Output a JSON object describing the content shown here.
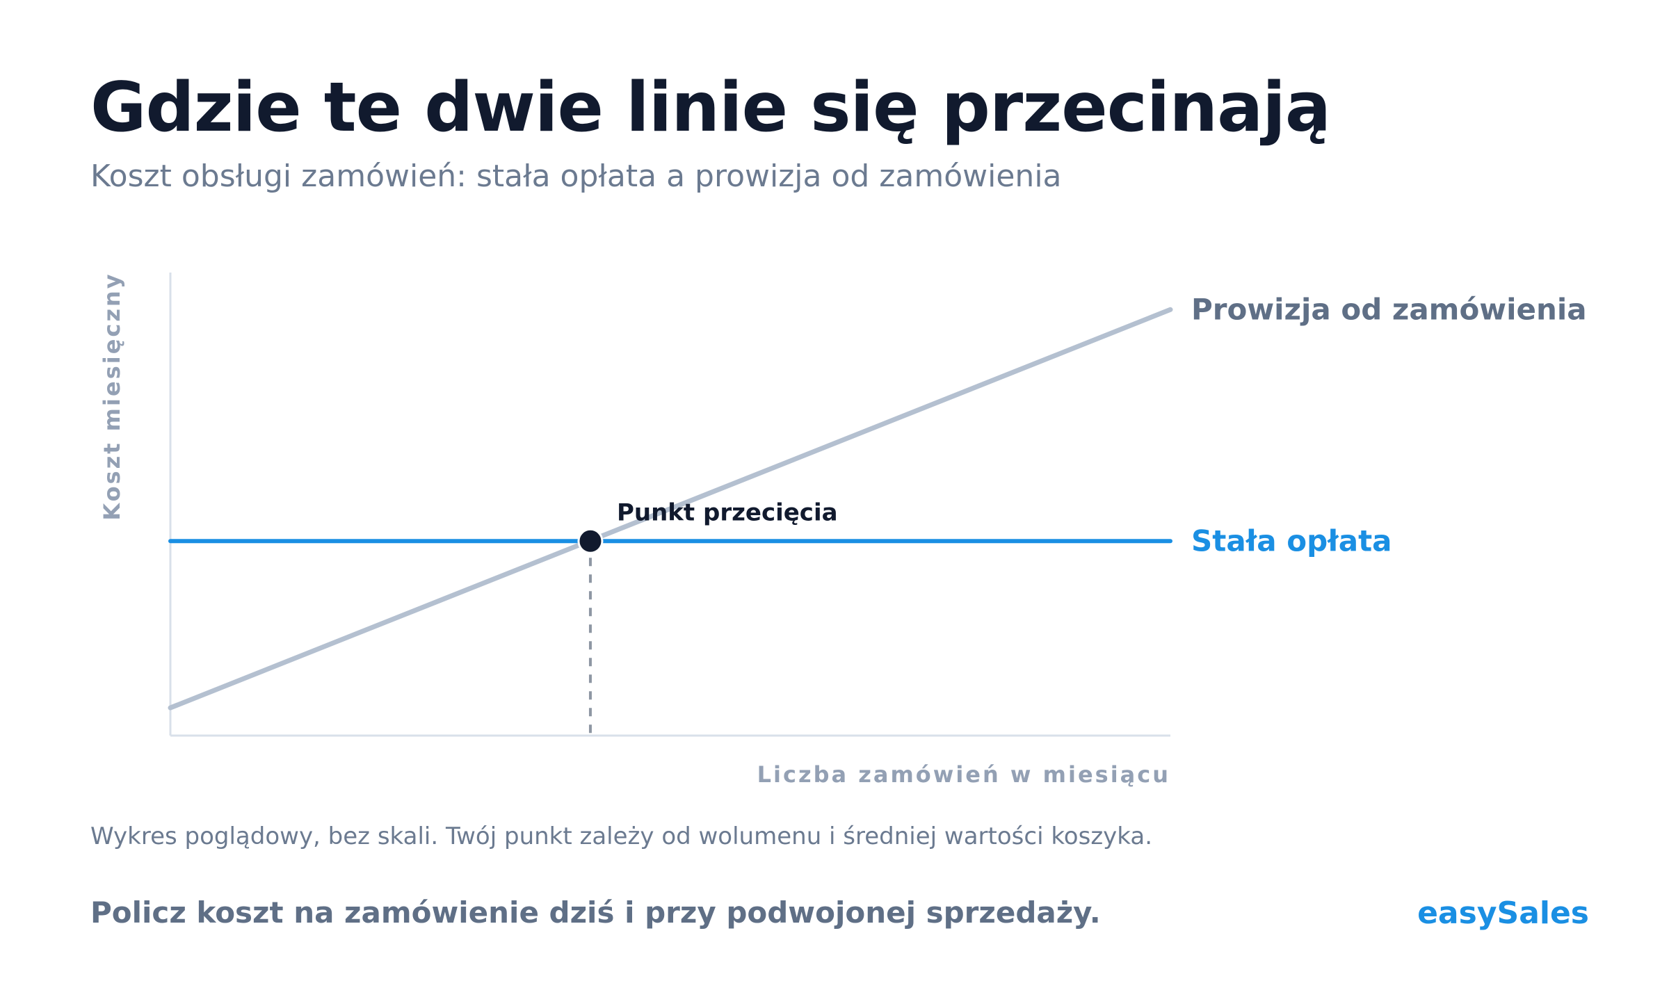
{
  "header": {
    "title": "Gdzie te dwie linie się przecinają",
    "subtitle": "Koszt obsługi zamówień: stała opłata a prowizja od zamówienia"
  },
  "chart_data": {
    "type": "line",
    "xlabel": "Liczba zamówień w miesiącu",
    "ylabel": "Koszt miesięczny",
    "scale": "none",
    "xlim": [
      0,
      100
    ],
    "ylim": [
      0,
      100
    ],
    "grid": false,
    "series": [
      {
        "name": "Prowizja od zamówienia",
        "color": "#b4c0d0",
        "x": [
          0,
          100
        ],
        "y": [
          6,
          92
        ]
      },
      {
        "name": "Stała opłata",
        "color": "#1a8fe3",
        "x": [
          0,
          100
        ],
        "y": [
          42,
          42
        ]
      }
    ],
    "annotations": [
      {
        "label": "Punkt przecięcia",
        "x": 42,
        "y": 42,
        "marker_color": "#111a2e",
        "guide": "dashed-vertical"
      }
    ],
    "legend_placement": "line-end-labels"
  },
  "footer": {
    "note": "Wykres poglądowy, bez skali. Twój punkt zależy od wolumenu i średniej wartości koszyka.",
    "cta": "Policz koszt na zamówienie dziś i przy podwojonej sprzedaży.",
    "brand": "easySales"
  },
  "colors": {
    "title": "#111a2e",
    "muted": "#6b7a90",
    "axis": "#d9e0ea",
    "axis_label": "#93a0b4",
    "accent": "#1a8fe3",
    "commission_line": "#b4c0d0",
    "commission_label": "#5f6f86"
  }
}
